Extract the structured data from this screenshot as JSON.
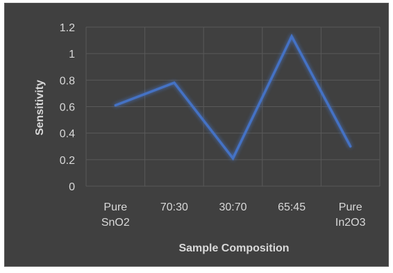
{
  "chart_data": {
    "type": "line",
    "title": "",
    "xlabel": "Sample Composition",
    "ylabel": "Sensitivity",
    "categories": [
      [
        "Pure",
        "SnO2"
      ],
      [
        "70:30"
      ],
      [
        "30:70"
      ],
      [
        "65:45"
      ],
      [
        "Pure",
        "In2O3"
      ]
    ],
    "series": [
      {
        "values": [
          0.61,
          0.78,
          0.21,
          1.13,
          0.3
        ]
      }
    ],
    "ylim": [
      0,
      1.2
    ],
    "yticks": [
      "0",
      "0.2",
      "0.4",
      "0.6",
      "0.8",
      "1",
      "1.2"
    ],
    "grid": true,
    "legend": "none",
    "colors": {
      "background": "#404040",
      "grid": "#595959",
      "line": "#4472c4",
      "text": "#d9d9d9"
    }
  }
}
